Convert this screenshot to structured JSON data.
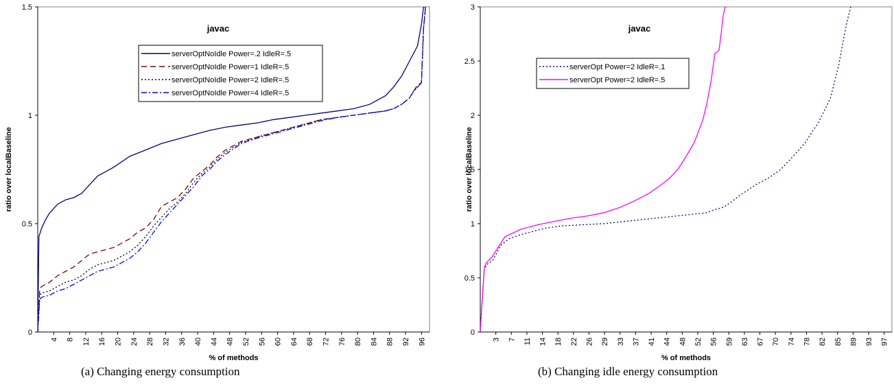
{
  "captions": [
    "(a) Changing energy consumption",
    "(b) Changing idle energy consumption"
  ],
  "chart_data": [
    {
      "type": "line",
      "title": "javac",
      "xlabel": "% of methods",
      "ylabel": "ratio over localBaseline",
      "ylim": [
        0,
        1.5
      ],
      "yticks": [
        "0",
        "0.5",
        "1",
        "1.5"
      ],
      "xticks": [
        "4",
        "8",
        "12",
        "16",
        "20",
        "24",
        "28",
        "32",
        "36",
        "40",
        "44",
        "48",
        "52",
        "56",
        "60",
        "64",
        "68",
        "72",
        "76",
        "80",
        "84",
        "88",
        "92",
        "96"
      ],
      "xlim": [
        1,
        99
      ],
      "legend_position": "top-center",
      "series": [
        {
          "name": "serverOptNoIdle  Power=.2 IdleR=.5",
          "color": "#000080",
          "dash": "solid",
          "x": [
            1,
            1.3,
            2,
            3,
            4,
            5,
            6,
            8,
            10,
            12,
            14,
            16,
            18,
            20,
            24,
            28,
            32,
            36,
            40,
            44,
            48,
            52,
            56,
            60,
            64,
            68,
            72,
            76,
            80,
            84,
            88,
            90,
            92,
            94,
            96,
            97,
            97.5,
            98
          ],
          "y": [
            0,
            0.44,
            0.48,
            0.52,
            0.55,
            0.57,
            0.59,
            0.61,
            0.62,
            0.64,
            0.68,
            0.72,
            0.74,
            0.76,
            0.81,
            0.84,
            0.87,
            0.89,
            0.91,
            0.93,
            0.945,
            0.955,
            0.965,
            0.98,
            0.99,
            1.0,
            1.01,
            1.02,
            1.03,
            1.05,
            1.09,
            1.13,
            1.18,
            1.25,
            1.32,
            1.42,
            1.5,
            1.5
          ]
        },
        {
          "name": "serverOptNoIdle  Power=1 IdleR=.5",
          "color": "#800000",
          "dash": "8,5",
          "x": [
            1,
            1.5,
            2,
            4,
            6,
            8,
            10,
            12,
            14,
            16,
            20,
            24,
            26,
            28,
            30,
            32,
            34,
            36,
            38,
            40,
            42,
            44,
            46,
            48,
            52,
            56,
            60,
            64,
            68,
            72,
            76,
            80,
            84,
            88,
            90,
            92,
            94,
            95,
            96,
            97,
            97.5,
            98
          ],
          "y": [
            0,
            0.2,
            0.21,
            0.23,
            0.26,
            0.28,
            0.3,
            0.33,
            0.36,
            0.37,
            0.39,
            0.43,
            0.46,
            0.48,
            0.52,
            0.58,
            0.6,
            0.62,
            0.66,
            0.71,
            0.74,
            0.77,
            0.81,
            0.84,
            0.88,
            0.9,
            0.92,
            0.94,
            0.96,
            0.98,
            0.99,
            1.0,
            1.01,
            1.02,
            1.03,
            1.05,
            1.08,
            1.11,
            1.14,
            1.15,
            1.4,
            1.5
          ]
        },
        {
          "name": "serverOptNoIdle  Power=2 IdleR=.5",
          "color": "#000000",
          "dash": "2,3",
          "x": [
            1,
            1.5,
            2,
            4,
            6,
            8,
            10,
            12,
            14,
            16,
            20,
            24,
            26,
            28,
            30,
            32,
            34,
            36,
            38,
            40,
            42,
            44,
            46,
            48,
            52,
            56,
            60,
            64,
            68,
            72,
            76,
            80,
            84,
            88,
            90,
            92,
            94,
            95,
            96,
            97,
            97.5,
            98
          ],
          "y": [
            0,
            0.17,
            0.18,
            0.19,
            0.21,
            0.23,
            0.24,
            0.26,
            0.29,
            0.31,
            0.33,
            0.37,
            0.4,
            0.44,
            0.49,
            0.53,
            0.57,
            0.6,
            0.64,
            0.69,
            0.73,
            0.76,
            0.8,
            0.83,
            0.875,
            0.9,
            0.92,
            0.94,
            0.96,
            0.98,
            0.99,
            1.0,
            1.01,
            1.02,
            1.03,
            1.05,
            1.08,
            1.11,
            1.13,
            1.15,
            1.4,
            1.5
          ]
        },
        {
          "name": "serverOptNoIdle  Power=4 IdleR=.5",
          "color": "#0000ff",
          "dash": "8,3,2,3",
          "x": [
            1,
            1.5,
            2,
            4,
            6,
            8,
            10,
            12,
            14,
            16,
            20,
            24,
            26,
            28,
            30,
            32,
            34,
            36,
            38,
            40,
            42,
            44,
            46,
            48,
            52,
            56,
            60,
            64,
            68,
            72,
            76,
            80,
            84,
            88,
            90,
            92,
            94,
            95,
            96,
            97,
            97.5,
            98
          ],
          "y": [
            0,
            0.15,
            0.16,
            0.17,
            0.19,
            0.2,
            0.22,
            0.24,
            0.26,
            0.28,
            0.3,
            0.34,
            0.37,
            0.41,
            0.46,
            0.51,
            0.55,
            0.59,
            0.63,
            0.67,
            0.72,
            0.75,
            0.79,
            0.82,
            0.87,
            0.895,
            0.915,
            0.935,
            0.955,
            0.975,
            0.99,
            1.0,
            1.01,
            1.02,
            1.03,
            1.05,
            1.08,
            1.11,
            1.13,
            1.15,
            1.4,
            1.5
          ]
        }
      ]
    },
    {
      "type": "line",
      "title": "javac",
      "xlabel": "% of methods",
      "ylabel": "ratio over localBaseline",
      "ylim": [
        0,
        3
      ],
      "yticks": [
        "0",
        "0.5",
        "1",
        "1.5",
        "2",
        "2.5",
        "3"
      ],
      "xticks": [
        "3",
        "7",
        "11",
        "14",
        "18",
        "22",
        "26",
        "29",
        "33",
        "37",
        "41",
        "44",
        "48",
        "52",
        "56",
        "59",
        "63",
        "67",
        "70",
        "74",
        "78",
        "82",
        "85",
        "89",
        "93",
        "97"
      ],
      "xlim": [
        0,
        100
      ],
      "legend_position": "top-left",
      "series": [
        {
          "name": "serverOpt  Power=2 IdleR=.1",
          "color": "#000080",
          "dash": "2,3",
          "x": [
            0,
            0.5,
            1,
            1.5,
            3,
            5,
            7,
            10,
            13,
            16,
            20,
            25,
            30,
            35,
            40,
            45,
            50,
            55,
            57,
            59,
            61,
            63,
            65,
            67,
            70,
            73,
            76,
            79,
            81,
            82,
            83,
            85,
            86,
            87,
            88,
            89,
            90
          ],
          "y": [
            0,
            0.3,
            0.58,
            0.62,
            0.66,
            0.8,
            0.86,
            0.9,
            0.93,
            0.96,
            0.98,
            0.99,
            1.0,
            1.02,
            1.04,
            1.06,
            1.08,
            1.1,
            1.13,
            1.15,
            1.2,
            1.26,
            1.31,
            1.36,
            1.42,
            1.5,
            1.62,
            1.75,
            1.87,
            1.92,
            2.0,
            2.15,
            2.3,
            2.45,
            2.65,
            2.85,
            3.0
          ]
        },
        {
          "name": "serverOpt  Power=2 IdleR=.5",
          "color": "#ff00ff",
          "dash": "solid",
          "x": [
            0,
            0.5,
            1,
            1.5,
            3,
            4,
            6,
            10,
            14,
            18,
            22,
            26,
            30,
            34,
            38,
            41,
            44,
            46,
            48,
            50,
            52,
            53,
            54,
            55,
            56,
            57,
            58,
            58.5,
            59,
            59.5,
            60
          ],
          "y": [
            0,
            0.32,
            0.6,
            0.64,
            0.7,
            0.76,
            0.88,
            0.95,
            0.99,
            1.02,
            1.05,
            1.07,
            1.1,
            1.15,
            1.22,
            1.28,
            1.36,
            1.42,
            1.5,
            1.62,
            1.75,
            1.85,
            1.95,
            2.1,
            2.3,
            2.57,
            2.6,
            2.75,
            2.92,
            3.0,
            3.0
          ]
        }
      ]
    }
  ]
}
